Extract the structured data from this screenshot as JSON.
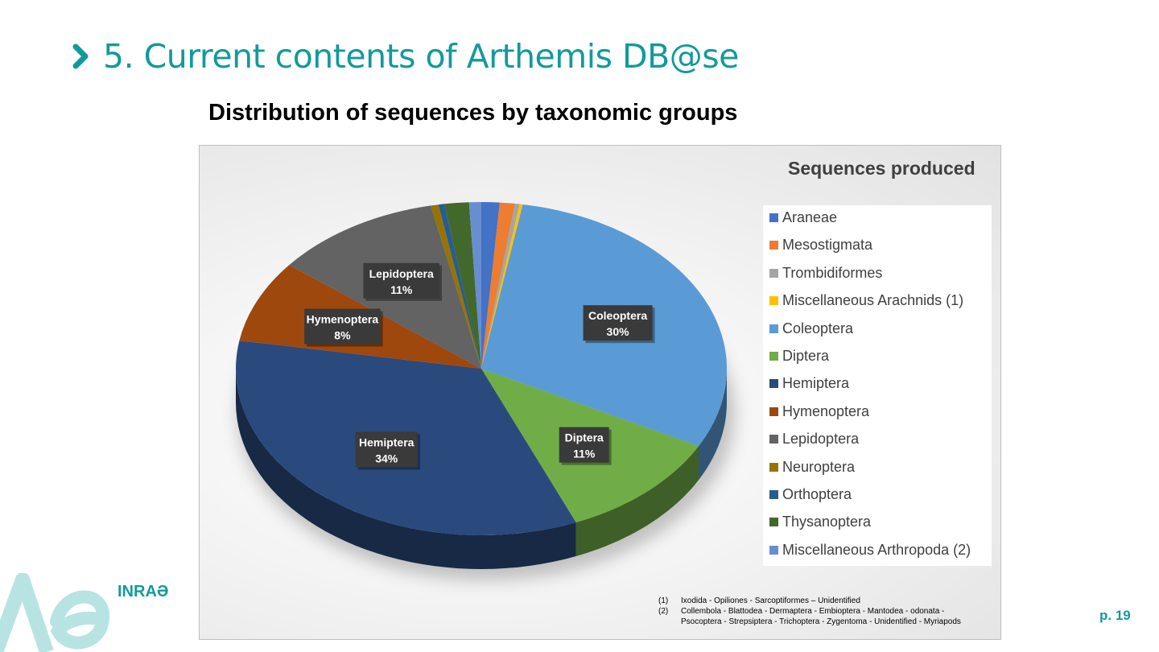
{
  "slide": {
    "title": "5. Current contents of Arthemis DB@se",
    "subtitle": "Distribution of sequences by taxonomic groups",
    "page_label": "p. 19",
    "brand": "INRAƏ",
    "accent_color": "#129a9b"
  },
  "footnotes": [
    {
      "num": "(1)",
      "text": "Ixodida - Opiliones - Sarcoptiformes – Unidentified"
    },
    {
      "num": "(2)",
      "text": "Collembola - Blattodea - Dermaptera - Embioptera - Mantodea - odonata -"
    },
    {
      "num": "",
      "text": "Psocoptera - Strepsiptera - Trichoptera - Zygentoma - Unidentified - Myriapods"
    }
  ],
  "chart_data": {
    "type": "pie",
    "title": "Sequences produced",
    "legend_position": "right",
    "slices": [
      {
        "name": "Araneae",
        "value": 1.2,
        "color": "#4472c4",
        "label": ""
      },
      {
        "name": "Mesostigmata",
        "value": 1.0,
        "color": "#ed7d31",
        "label": ""
      },
      {
        "name": "Trombidiformes",
        "value": 0.3,
        "color": "#a5a5a5",
        "label": ""
      },
      {
        "name": "Miscellaneous Arachnids (1)",
        "value": 0.2,
        "color": "#ffc000",
        "label": ""
      },
      {
        "name": "Coleoptera",
        "value": 30,
        "color": "#5b9bd5",
        "label": "30%"
      },
      {
        "name": "Diptera",
        "value": 11,
        "color": "#70ad47",
        "label": "11%"
      },
      {
        "name": "Hemiptera",
        "value": 34,
        "color": "#2a4a7e",
        "label": "34%"
      },
      {
        "name": "Hymenoptera",
        "value": 8,
        "color": "#9e480e",
        "label": "8%"
      },
      {
        "name": "Lepidoptera",
        "value": 11,
        "color": "#636363",
        "label": "11%"
      },
      {
        "name": "Neuroptera",
        "value": 0.5,
        "color": "#997300",
        "label": ""
      },
      {
        "name": "Orthoptera",
        "value": 0.4,
        "color": "#255e91",
        "label": ""
      },
      {
        "name": "Thysanoptera",
        "value": 1.6,
        "color": "#43682b",
        "label": ""
      },
      {
        "name": "Miscellaneous Arthropoda (2)",
        "value": 0.8,
        "color": "#698ed0",
        "label": ""
      }
    ]
  }
}
